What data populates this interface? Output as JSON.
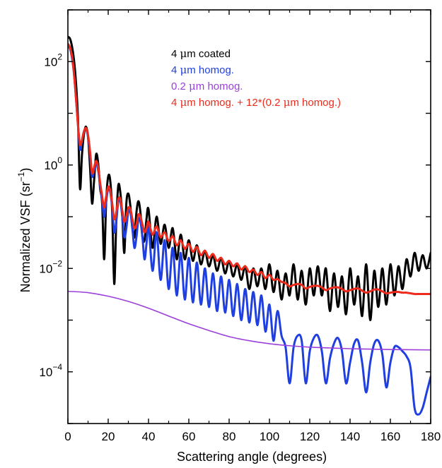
{
  "chart_data": {
    "type": "line",
    "title": "",
    "xlabel": "Scattering angle (degrees)",
    "ylabel": {
      "main": "Normalized VSF (sr",
      "sup": "−1",
      "close": ")"
    },
    "xlim": [
      0,
      180
    ],
    "ylim": [
      1e-05,
      1000
    ],
    "yscale": "log",
    "grid": false,
    "legend_position": "top-right",
    "x_ticks": [
      "0",
      "20",
      "40",
      "60",
      "80",
      "100",
      "120",
      "140",
      "160",
      "180"
    ],
    "x_tick_values": [
      0,
      20,
      40,
      60,
      80,
      100,
      120,
      140,
      160,
      180
    ],
    "y_ticks": [
      {
        "base": "10",
        "exp": "2",
        "value": 100
      },
      {
        "base": "10",
        "exp": "0",
        "value": 1
      },
      {
        "base": "10",
        "exp": "−2",
        "value": 0.01
      },
      {
        "base": "10",
        "exp": "−4",
        "value": 0.0001
      }
    ],
    "series": [
      {
        "name": "4 μm coated",
        "color": "#000000",
        "stroke_width": 3,
        "x": [
          0,
          1,
          2,
          3,
          4,
          5,
          6,
          7,
          8,
          9,
          10,
          11,
          12,
          13,
          14,
          15,
          16,
          17,
          18,
          19,
          20,
          21,
          22,
          23,
          24,
          25,
          26,
          27,
          28,
          29,
          30,
          31,
          32,
          33,
          34,
          35,
          36,
          37,
          38,
          39,
          40,
          42,
          44,
          46,
          48,
          50,
          52,
          54,
          56,
          58,
          60,
          62,
          64,
          66,
          68,
          70,
          72,
          74,
          76,
          78,
          80,
          82,
          84,
          86,
          88,
          90,
          92,
          94,
          96,
          98,
          100,
          102,
          104,
          106,
          108,
          110,
          112,
          114,
          116,
          118,
          120,
          122,
          124,
          126,
          128,
          130,
          132,
          134,
          136,
          138,
          140,
          142,
          144,
          146,
          148,
          150,
          152,
          154,
          156,
          158,
          160,
          162,
          164,
          166,
          168,
          170,
          172,
          174,
          176,
          178,
          180
        ],
        "y": [
          300,
          280,
          200,
          110,
          40,
          8,
          0.35,
          1.6,
          4,
          5.5,
          3.5,
          0.9,
          0.18,
          0.5,
          1.6,
          1.1,
          0.35,
          0.18,
          0.015,
          0.2,
          0.6,
          0.5,
          0.12,
          0.005,
          0.08,
          0.4,
          0.3,
          0.1,
          0.02,
          0.18,
          0.28,
          0.16,
          0.06,
          0.04,
          0.12,
          0.2,
          0.12,
          0.04,
          0.035,
          0.09,
          0.14,
          0.025,
          0.1,
          0.03,
          0.07,
          0.025,
          0.06,
          0.015,
          0.045,
          0.015,
          0.035,
          0.014,
          0.028,
          0.012,
          0.022,
          0.011,
          0.018,
          0.009,
          0.016,
          0.008,
          0.014,
          0.007,
          0.012,
          0.006,
          0.011,
          0.004,
          0.01,
          0.0045,
          0.01,
          0.004,
          0.012,
          0.0035,
          0.009,
          0.0025,
          0.008,
          0.003,
          0.012,
          0.0025,
          0.009,
          0.002,
          0.01,
          0.003,
          0.011,
          0.003,
          0.01,
          0.0015,
          0.008,
          0.0018,
          0.007,
          0.0013,
          0.01,
          0.002,
          0.007,
          0.0012,
          0.012,
          0.001,
          0.009,
          0.0018,
          0.01,
          0.002,
          0.012,
          0.003,
          0.011,
          0.004,
          0.015,
          0.007,
          0.02,
          0.009,
          0.018,
          0.01,
          0.02
        ]
      },
      {
        "name": "4 μm homog.",
        "color": "#1f3fe0",
        "stroke_width": 3,
        "x": [
          0,
          1,
          2,
          3,
          4,
          5,
          6,
          7,
          8,
          9,
          10,
          11,
          12,
          13,
          14,
          15,
          16,
          17,
          18,
          19,
          20,
          21,
          22,
          23,
          24,
          25,
          26,
          27,
          28,
          29,
          30,
          31,
          32,
          33,
          34,
          35,
          36,
          37,
          38,
          39,
          40,
          42,
          44,
          46,
          48,
          50,
          52,
          54,
          56,
          58,
          60,
          62,
          64,
          66,
          68,
          70,
          72,
          74,
          76,
          78,
          80,
          82,
          84,
          86,
          88,
          90,
          92,
          94,
          96,
          98,
          100,
          102,
          104,
          106,
          108,
          110,
          112,
          114,
          116,
          118,
          120,
          122,
          124,
          126,
          128,
          130,
          132,
          134,
          136,
          138,
          140,
          142,
          144,
          146,
          148,
          150,
          152,
          154,
          156,
          158,
          160,
          162,
          164,
          166,
          168,
          170,
          172,
          174,
          176,
          178,
          180
        ],
        "y": [
          200,
          180,
          120,
          60,
          20,
          6,
          2,
          3,
          4.5,
          5,
          3.5,
          1.6,
          0.6,
          0.8,
          1.1,
          0.8,
          0.4,
          0.2,
          0.1,
          0.2,
          0.35,
          0.3,
          0.15,
          0.05,
          0.08,
          0.2,
          0.2,
          0.1,
          0.04,
          0.06,
          0.13,
          0.12,
          0.06,
          0.025,
          0.04,
          0.09,
          0.08,
          0.04,
          0.015,
          0.03,
          0.07,
          0.009,
          0.05,
          0.006,
          0.035,
          0.004,
          0.025,
          0.003,
          0.02,
          0.0025,
          0.016,
          0.0022,
          0.013,
          0.002,
          0.01,
          0.0018,
          0.008,
          0.0015,
          0.007,
          0.0014,
          0.006,
          0.0012,
          0.005,
          0.001,
          0.004,
          0.0009,
          0.0035,
          0.0008,
          0.003,
          0.0006,
          0.002,
          0.0004,
          0.0015,
          0.0005,
          0.0003,
          6e-05,
          0.0003,
          0.0005,
          0.0004,
          6e-05,
          0.00025,
          0.00045,
          0.0005,
          0.00025,
          6e-05,
          0.00018,
          0.00035,
          0.00045,
          0.00025,
          6e-05,
          0.00015,
          0.00035,
          0.0004,
          0.00015,
          4e-05,
          0.00015,
          0.00035,
          0.0004,
          0.00022,
          5e-05,
          0.00015,
          0.0003,
          0.0003,
          0.00025,
          0.0002,
          0.00012,
          2e-05,
          1.5e-05,
          2e-05,
          4e-05,
          8e-05
        ]
      },
      {
        "name": "0.2 μm homog.",
        "color": "#9b3fdb",
        "stroke_width": 1.6,
        "x": [
          0,
          10,
          20,
          30,
          40,
          50,
          60,
          70,
          80,
          90,
          100,
          110,
          120,
          130,
          140,
          150,
          160,
          170,
          180
        ],
        "y": [
          0.0036,
          0.0034,
          0.0029,
          0.0023,
          0.0017,
          0.0012,
          0.00085,
          0.00063,
          0.00048,
          0.0004,
          0.00035,
          0.00032,
          0.0003,
          0.00029,
          0.00028,
          0.000275,
          0.00027,
          0.000268,
          0.000265
        ]
      },
      {
        "name": "4 μm homog. + 12*(0.2 μm homog.)",
        "color": "#ee2a1b",
        "stroke_width": 3,
        "x": [
          0,
          1,
          2,
          3,
          4,
          5,
          6,
          7,
          8,
          9,
          10,
          11,
          12,
          13,
          14,
          15,
          16,
          17,
          18,
          19,
          20,
          21,
          22,
          23,
          24,
          25,
          26,
          27,
          28,
          29,
          30,
          31,
          32,
          33,
          34,
          35,
          36,
          37,
          38,
          39,
          40,
          42,
          44,
          46,
          48,
          50,
          52,
          54,
          56,
          58,
          60,
          62,
          64,
          66,
          68,
          70,
          72,
          74,
          76,
          78,
          80,
          82,
          84,
          86,
          88,
          90,
          92,
          94,
          96,
          98,
          100,
          102,
          104,
          106,
          108,
          110,
          112,
          114,
          116,
          118,
          120,
          122,
          124,
          126,
          128,
          130,
          132,
          134,
          136,
          138,
          140,
          142,
          144,
          146,
          148,
          150,
          152,
          154,
          156,
          158,
          160,
          162,
          164,
          166,
          168,
          170,
          172,
          174,
          176,
          178,
          180
        ],
        "y": [
          220,
          190,
          130,
          60,
          20,
          6,
          2.5,
          3,
          4.5,
          5.2,
          3.8,
          1.8,
          0.7,
          0.9,
          1.2,
          0.9,
          0.45,
          0.25,
          0.15,
          0.25,
          0.38,
          0.32,
          0.18,
          0.09,
          0.12,
          0.22,
          0.22,
          0.13,
          0.08,
          0.1,
          0.15,
          0.14,
          0.09,
          0.06,
          0.07,
          0.11,
          0.1,
          0.07,
          0.05,
          0.06,
          0.08,
          0.045,
          0.065,
          0.04,
          0.05,
          0.034,
          0.042,
          0.028,
          0.035,
          0.024,
          0.03,
          0.021,
          0.026,
          0.018,
          0.022,
          0.016,
          0.019,
          0.014,
          0.016,
          0.012,
          0.014,
          0.011,
          0.0125,
          0.0095,
          0.011,
          0.0085,
          0.0095,
          0.0075,
          0.0085,
          0.0065,
          0.0075,
          0.006,
          0.0062,
          0.0055,
          0.0052,
          0.0045,
          0.0048,
          0.005,
          0.0048,
          0.0041,
          0.0044,
          0.0046,
          0.0046,
          0.0043,
          0.0038,
          0.0041,
          0.0043,
          0.0043,
          0.004,
          0.0036,
          0.0038,
          0.004,
          0.0041,
          0.0037,
          0.0034,
          0.0036,
          0.0039,
          0.0039,
          0.0036,
          0.0033,
          0.0034,
          0.0035,
          0.0035,
          0.0034,
          0.0034,
          0.0033,
          0.0032,
          0.0032,
          0.0032,
          0.0032,
          0.0032
        ]
      }
    ],
    "legend": [
      {
        "prefix": "4 ",
        "mu": "μ",
        "suffix": "m coated",
        "color": "#000000"
      },
      {
        "prefix": "4 ",
        "mu": "μ",
        "suffix": "m homog.",
        "color": "#1f3fe0"
      },
      {
        "prefix": "0.2 ",
        "mu": "μ",
        "suffix": "m homog.",
        "color": "#9b3fdb"
      },
      {
        "prefix": "4 ",
        "mu": "μ",
        "suffix": "m homog. + 12*(0.2 ",
        "mu2": "μ",
        "suffix2": "m homog.)",
        "color": "#ee2a1b"
      }
    ]
  }
}
